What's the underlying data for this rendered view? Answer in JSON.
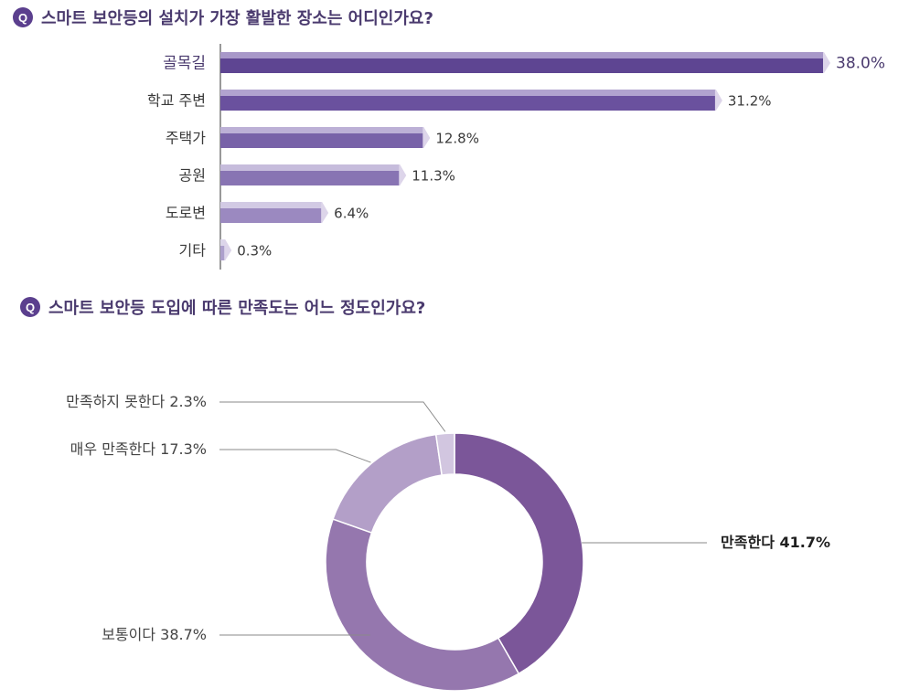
{
  "colors": {
    "accent": "#5b3f8e",
    "bar_dark": "#5e4592",
    "bar_light": "#ada0cc",
    "donut": [
      "#7b5699",
      "#9577ae",
      "#b39fc8",
      "#d2c6e0"
    ]
  },
  "q1": {
    "badge": "Q",
    "title": "스마트 보안등의 설치가 가장 활발한 장소는 어디인가요?"
  },
  "q2": {
    "badge": "Q",
    "title": "스마트 보안등 도입에 따른 만족도는 어느 정도인가요?"
  },
  "chart_data": [
    {
      "type": "bar",
      "orientation": "horizontal",
      "title": "스마트 보안등의 설치가 가장 활발한 장소는 어디인가요?",
      "categories": [
        "골목길",
        "학교 주변",
        "주택가",
        "공원",
        "도로변",
        "기타"
      ],
      "values": [
        38.0,
        31.2,
        12.8,
        11.3,
        6.4,
        0.3
      ],
      "value_labels": [
        "38.0%",
        "31.2%",
        "12.8%",
        "11.3%",
        "6.4%",
        "0.3%"
      ],
      "unit": "%",
      "xlim": [
        0,
        40
      ],
      "grid": false
    },
    {
      "type": "pie",
      "style": "donut",
      "title": "스마트 보안등 도입에 따른 만족도는 어느 정도인가요?",
      "categories": [
        "만족한다",
        "보통이다",
        "매우 만족한다",
        "만족하지 못한다"
      ],
      "values": [
        41.7,
        38.7,
        17.3,
        2.3
      ],
      "labels": [
        "만족한다 41.7%",
        "보통이다 38.7%",
        "매우 만족한다 17.3%",
        "만족하지 못한다 2.3%"
      ],
      "label_sides": [
        "right",
        "left",
        "left",
        "left"
      ]
    }
  ]
}
